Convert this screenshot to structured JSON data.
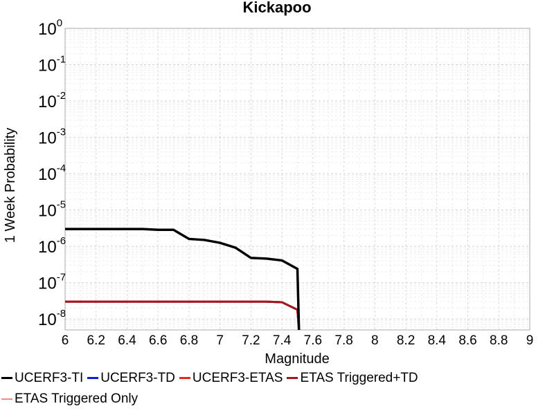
{
  "chart_data": {
    "type": "line",
    "title": "Kickapoo",
    "xlabel": "Magnitude",
    "ylabel": "1 Week Probability",
    "xlim": [
      6,
      9
    ],
    "ylim_exponent": [
      -8.3,
      0
    ],
    "y_scale": "log",
    "grid": true,
    "legend_position": "bottom",
    "x_ticks": [
      "6",
      "6.2",
      "6.4",
      "6.6",
      "6.8",
      "7",
      "7.2",
      "7.4",
      "7.6",
      "7.8",
      "8",
      "8.2",
      "8.4",
      "8.6",
      "8.8",
      "9"
    ],
    "y_ticks": [
      {
        "base": "10",
        "exp": "0",
        "value": 1
      },
      {
        "base": "10",
        "exp": "-1",
        "value": 0.1
      },
      {
        "base": "10",
        "exp": "-2",
        "value": 0.01
      },
      {
        "base": "10",
        "exp": "-3",
        "value": 0.001
      },
      {
        "base": "10",
        "exp": "-4",
        "value": 0.0001
      },
      {
        "base": "10",
        "exp": "-5",
        "value": 1e-05
      },
      {
        "base": "10",
        "exp": "-6",
        "value": 1e-06
      },
      {
        "base": "10",
        "exp": "-7",
        "value": 1e-07
      },
      {
        "base": "10",
        "exp": "-8",
        "value": 1e-08
      }
    ],
    "series": [
      {
        "name": "UCERF3-TI",
        "color": "#000000",
        "width": 3.5,
        "x": [
          6.0,
          6.1,
          6.2,
          6.3,
          6.4,
          6.5,
          6.6,
          6.7,
          6.8,
          6.9,
          7.0,
          7.1,
          7.2,
          7.3,
          7.4,
          7.5,
          7.51
        ],
        "y": [
          3e-06,
          3e-06,
          3e-06,
          3e-06,
          3e-06,
          3e-06,
          2.85e-06,
          2.85e-06,
          1.6e-06,
          1.5e-06,
          1.25e-06,
          9.2e-07,
          4.8e-07,
          4.6e-07,
          4.1e-07,
          2.4e-07,
          5e-09
        ]
      },
      {
        "name": "UCERF3-TD",
        "color": "#0a1fd6",
        "width": 3,
        "x": [
          6.0,
          6.5,
          7.0,
          7.3,
          7.4,
          7.5,
          7.51
        ],
        "y": [
          3e-08,
          3e-08,
          3e-08,
          3e-08,
          2.9e-08,
          1.8e-08,
          4e-09
        ]
      },
      {
        "name": "UCERF3-ETAS",
        "color": "#e8281e",
        "width": 3,
        "x": [
          6.0,
          6.5,
          7.0,
          7.3,
          7.4,
          7.5,
          7.51
        ],
        "y": [
          3e-08,
          3e-08,
          3e-08,
          3e-08,
          2.9e-08,
          1.8e-08,
          4e-09
        ]
      },
      {
        "name": "ETAS Triggered+TD",
        "color": "#a3161b",
        "width": 3,
        "x": [
          6.0,
          6.5,
          7.0,
          7.3,
          7.4,
          7.5,
          7.51
        ],
        "y": [
          3e-08,
          3e-08,
          3e-08,
          3e-08,
          2.9e-08,
          1.8e-08,
          4e-09
        ]
      },
      {
        "name": "ETAS Triggered Only",
        "color": "#f08a8a",
        "width": 1.5,
        "x": [],
        "y": []
      }
    ]
  }
}
